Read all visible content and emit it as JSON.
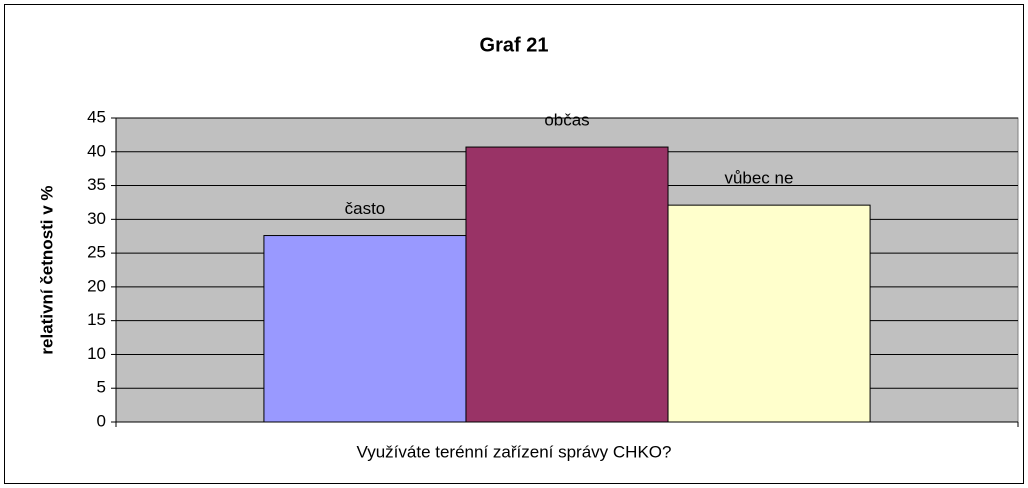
{
  "chart_data": {
    "type": "bar",
    "title": "Graf 21",
    "x_label": "Využíváte terénní zařízení správy CHKO?",
    "y_label": "relativní četnosti v %",
    "categories": [
      "často",
      "občas",
      "vůbec ne"
    ],
    "values": [
      27.6,
      40.7,
      32.1
    ],
    "colors": [
      "#9999ff",
      "#993366",
      "#ffffcc"
    ],
    "ylim": [
      0,
      45
    ],
    "yticks": [
      0,
      5,
      10,
      15,
      20,
      25,
      30,
      35,
      40,
      45
    ],
    "grid": true
  }
}
